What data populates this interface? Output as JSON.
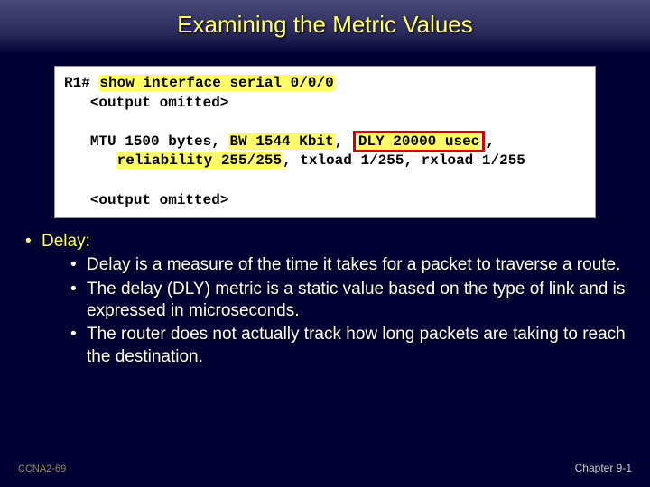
{
  "title": "Examining the Metric Values",
  "code": {
    "prompt": "R1#",
    "cmd_hl": "show interface serial 0/0/0",
    "omitted": "<output omitted>",
    "line2_a": "MTU 1500 bytes, ",
    "line2_bw_hl": "BW 1544 Kbit",
    "line2_mid": ", ",
    "line2_dly_hl": "DLY 20000 usec",
    "line2_end": ",",
    "line3_a": "reliability 255/255",
    "line3_b": ", txload 1/255, rxload 1/255",
    "hl_color": "#ffff66",
    "red_border": "#d00000"
  },
  "bullets": {
    "heading": "Delay:",
    "items": [
      "Delay is a measure of the time it takes for a packet to traverse a route.",
      "The delay (DLY) metric is a static value based on the type of link and is expressed in microseconds.",
      "The router does not actually track how long packets are taking to reach the destination."
    ]
  },
  "footer": {
    "left": "CCNA2-69",
    "right": "Chapter  9-1"
  },
  "colors": {
    "bg": "#000033",
    "title_color": "#ffff66",
    "bullet1_color": "#ffff66",
    "text_color": "#ffffff"
  }
}
